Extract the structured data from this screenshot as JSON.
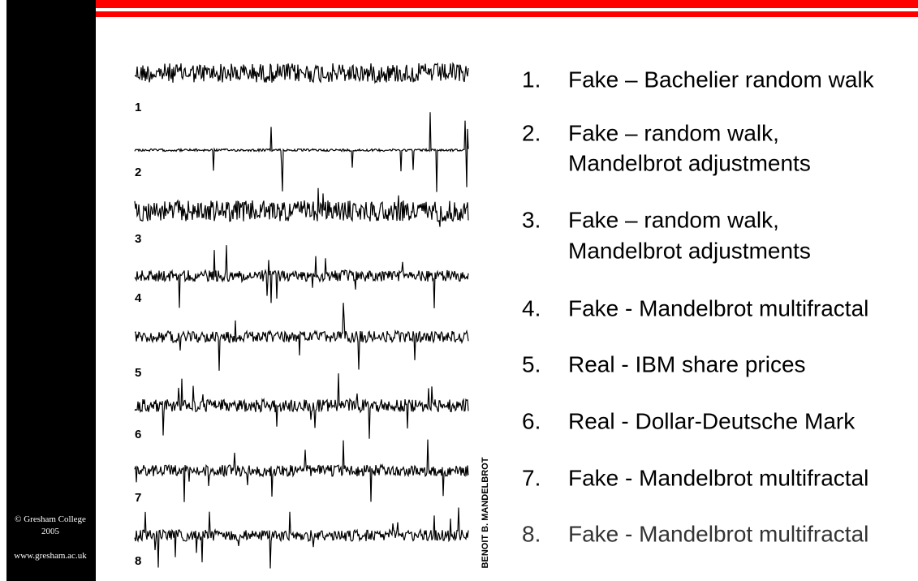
{
  "sidebar": {
    "copyright": [
      "© Gresham College",
      "2005"
    ],
    "website": "www.gresham.ac.uk"
  },
  "figure": {
    "trace_labels": [
      "1",
      "2",
      "3",
      "4",
      "5",
      "6",
      "7",
      "8"
    ],
    "credit": "BENOIT B. MANDELBROT"
  },
  "list": [
    {
      "number": "1.",
      "lines": [
        "Fake – Bachelier random walk"
      ]
    },
    {
      "number": "2.",
      "lines": [
        "Fake – random walk,",
        "Mandelbrot adjustments"
      ]
    },
    {
      "number": "3.",
      "lines": [
        "Fake – random walk,",
        "Mandelbrot adjustments"
      ]
    },
    {
      "number": "4.",
      "lines": [
        "Fake - Mandelbrot multifractal"
      ]
    },
    {
      "number": "5.",
      "lines": [
        "Real - IBM share prices"
      ]
    },
    {
      "number": "6.",
      "lines": [
        "Real - Dollar-Deutsche Mark"
      ]
    },
    {
      "number": "7.",
      "lines": [
        "Fake - Mandelbrot multifractal"
      ]
    },
    {
      "number": "8.",
      "lines": [
        "Fake - Mandelbrot multifractal"
      ]
    }
  ]
}
